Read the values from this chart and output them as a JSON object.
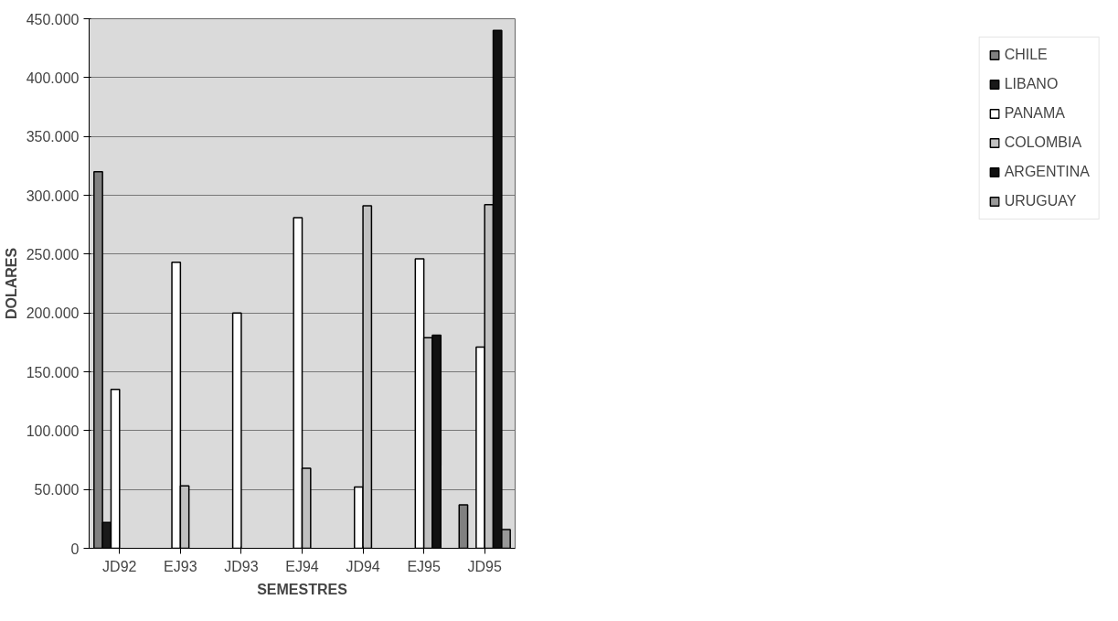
{
  "chart_data": {
    "type": "bar",
    "xlabel": "SEMESTRES",
    "ylabel": "DOLARES",
    "categories": [
      "JD92",
      "EJ93",
      "JD93",
      "EJ94",
      "JD94",
      "EJ95",
      "JD95"
    ],
    "series": [
      {
        "name": "CHILE",
        "color": "#808080",
        "values": [
          320000,
          null,
          null,
          null,
          null,
          null,
          37000
        ]
      },
      {
        "name": "LIBANO",
        "color": "#1a1a1a",
        "values": [
          22000,
          null,
          null,
          null,
          null,
          null,
          null
        ]
      },
      {
        "name": "PANAMA",
        "color": "#ffffff",
        "values": [
          135000,
          243000,
          200000,
          281000,
          52000,
          246000,
          171000
        ]
      },
      {
        "name": "COLOMBIA",
        "color": "#c0c0c0",
        "values": [
          null,
          53000,
          null,
          68000,
          291000,
          179000,
          292000
        ]
      },
      {
        "name": "ARGENTINA",
        "color": "#111111",
        "values": [
          null,
          null,
          null,
          null,
          null,
          181000,
          440000
        ]
      },
      {
        "name": "URUGUAY",
        "color": "#999999",
        "values": [
          null,
          null,
          null,
          null,
          null,
          null,
          16000
        ]
      }
    ],
    "ylim": [
      0,
      450000
    ],
    "yticks": [
      {
        "value": 0,
        "label": "0"
      },
      {
        "value": 50000,
        "label": "50.000"
      },
      {
        "value": 100000,
        "label": "100.000"
      },
      {
        "value": 150000,
        "label": "150.000"
      },
      {
        "value": 200000,
        "label": "200.000"
      },
      {
        "value": 250000,
        "label": "250.000"
      },
      {
        "value": 300000,
        "label": "300.000"
      },
      {
        "value": 350000,
        "label": "350.000"
      },
      {
        "value": 400000,
        "label": "400.000"
      },
      {
        "value": 450000,
        "label": "450.000"
      }
    ],
    "grid": "y",
    "legend": "right"
  }
}
